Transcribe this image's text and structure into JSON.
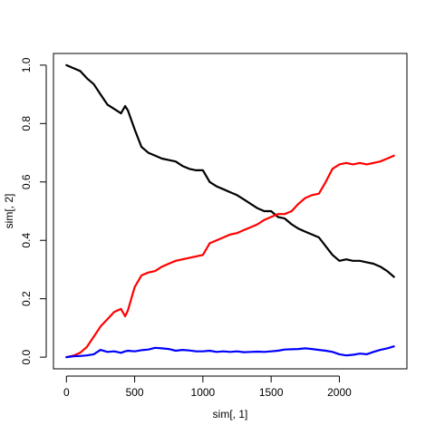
{
  "chart_data": {
    "type": "line",
    "title": "",
    "xlabel": "sim[, 1]",
    "ylabel": "sim[, 2]",
    "xlim": [
      -95,
      2495
    ],
    "ylim": [
      -0.04,
      1.04
    ],
    "x_ticks": [
      0,
      500,
      1000,
      1500,
      2000
    ],
    "y_ticks": [
      0.0,
      0.2,
      0.4,
      0.6,
      0.8,
      1.0
    ],
    "x_tick_labels": [
      "0",
      "500",
      "1000",
      "1500",
      "2000"
    ],
    "y_tick_labels": [
      "0.0",
      "0.2",
      "0.4",
      "0.6",
      "0.8",
      "1.0"
    ],
    "grid": false,
    "legend": "none",
    "series": [
      {
        "color": "#000000",
        "x": [
          0,
          50,
          100,
          150,
          200,
          250,
          300,
          350,
          400,
          430,
          450,
          500,
          550,
          600,
          650,
          700,
          750,
          800,
          850,
          900,
          950,
          1000,
          1050,
          1100,
          1150,
          1200,
          1250,
          1300,
          1350,
          1400,
          1450,
          1500,
          1550,
          1600,
          1650,
          1700,
          1750,
          1800,
          1850,
          1900,
          1950,
          2000,
          2050,
          2100,
          2150,
          2200,
          2250,
          2300,
          2350,
          2400
        ],
        "y": [
          1.0,
          0.99,
          0.98,
          0.955,
          0.935,
          0.9,
          0.865,
          0.85,
          0.835,
          0.86,
          0.845,
          0.78,
          0.72,
          0.7,
          0.69,
          0.68,
          0.675,
          0.67,
          0.655,
          0.645,
          0.64,
          0.64,
          0.6,
          0.585,
          0.575,
          0.565,
          0.555,
          0.54,
          0.525,
          0.51,
          0.5,
          0.5,
          0.48,
          0.475,
          0.455,
          0.44,
          0.43,
          0.42,
          0.41,
          0.38,
          0.35,
          0.33,
          0.335,
          0.33,
          0.33,
          0.325,
          0.32,
          0.31,
          0.295,
          0.275
        ]
      },
      {
        "color": "#ff0000",
        "x": [
          0,
          50,
          100,
          150,
          200,
          250,
          300,
          350,
          400,
          430,
          450,
          500,
          550,
          600,
          650,
          700,
          750,
          800,
          850,
          900,
          950,
          1000,
          1050,
          1100,
          1150,
          1200,
          1250,
          1300,
          1350,
          1400,
          1450,
          1500,
          1550,
          1600,
          1650,
          1700,
          1750,
          1800,
          1850,
          1900,
          1950,
          2000,
          2050,
          2100,
          2150,
          2200,
          2250,
          2300,
          2350,
          2400
        ],
        "y": [
          0.0,
          0.005,
          0.015,
          0.035,
          0.07,
          0.105,
          0.13,
          0.155,
          0.165,
          0.14,
          0.16,
          0.24,
          0.28,
          0.29,
          0.295,
          0.31,
          0.32,
          0.33,
          0.335,
          0.34,
          0.345,
          0.35,
          0.39,
          0.4,
          0.41,
          0.42,
          0.425,
          0.435,
          0.445,
          0.455,
          0.47,
          0.48,
          0.49,
          0.49,
          0.5,
          0.525,
          0.545,
          0.555,
          0.56,
          0.6,
          0.645,
          0.66,
          0.665,
          0.66,
          0.665,
          0.66,
          0.665,
          0.67,
          0.68,
          0.69
        ]
      },
      {
        "color": "#0000ff",
        "x": [
          0,
          50,
          100,
          150,
          200,
          250,
          300,
          350,
          400,
          430,
          450,
          500,
          550,
          600,
          650,
          700,
          750,
          800,
          850,
          900,
          950,
          1000,
          1050,
          1100,
          1150,
          1200,
          1250,
          1300,
          1350,
          1400,
          1450,
          1500,
          1550,
          1600,
          1650,
          1700,
          1750,
          1800,
          1850,
          1900,
          1950,
          2000,
          2050,
          2100,
          2150,
          2200,
          2250,
          2300,
          2350,
          2400
        ],
        "y": [
          0.0,
          0.003,
          0.004,
          0.006,
          0.01,
          0.025,
          0.018,
          0.02,
          0.015,
          0.02,
          0.022,
          0.02,
          0.024,
          0.026,
          0.032,
          0.03,
          0.028,
          0.022,
          0.025,
          0.023,
          0.02,
          0.02,
          0.022,
          0.018,
          0.02,
          0.018,
          0.02,
          0.017,
          0.018,
          0.019,
          0.018,
          0.02,
          0.022,
          0.026,
          0.027,
          0.028,
          0.03,
          0.028,
          0.025,
          0.022,
          0.018,
          0.01,
          0.006,
          0.008,
          0.012,
          0.01,
          0.018,
          0.025,
          0.03,
          0.037
        ]
      }
    ]
  }
}
